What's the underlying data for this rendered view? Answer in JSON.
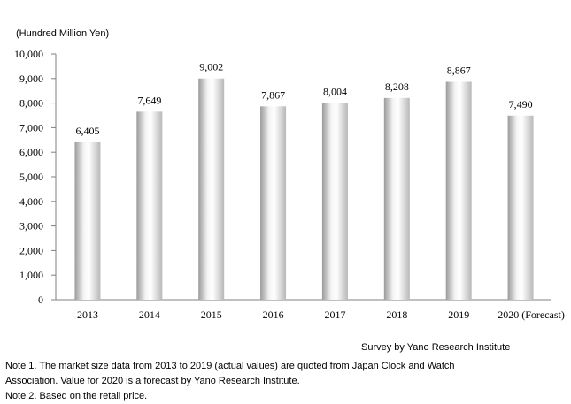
{
  "chart_data": {
    "type": "bar",
    "ylabel": "(Hundred Million Yen)",
    "categories": [
      "2013",
      "2014",
      "2015",
      "2016",
      "2017",
      "2018",
      "2019",
      "2020 (Forecast)"
    ],
    "values": [
      6405,
      7649,
      9002,
      7867,
      8004,
      8208,
      8867,
      7490
    ],
    "value_labels": [
      "6,405",
      "7,649",
      "9,002",
      "7,867",
      "8,004",
      "8,208",
      "8,867",
      "7,490"
    ],
    "ylim": [
      0,
      10000
    ],
    "yticks": [
      0,
      1000,
      2000,
      3000,
      4000,
      5000,
      6000,
      7000,
      8000,
      9000,
      10000
    ],
    "ytick_labels": [
      "0",
      "1,000",
      "2,000",
      "3,000",
      "4,000",
      "5,000",
      "6,000",
      "7,000",
      "8,000",
      "9,000",
      "10,000"
    ],
    "grid": false,
    "legend": "none",
    "bar_style": "silver-gradient"
  },
  "credit": "Survey by Yano Research Institute",
  "notes": {
    "note1_line1": "Note 1.  The market size data from 2013 to 2019 (actual values) are quoted from Japan Clock and Watch",
    "note1_line2": "Association. Value for 2020 is a forecast by Yano Research Institute.",
    "note2": "Note 2. Based on the retail price."
  }
}
